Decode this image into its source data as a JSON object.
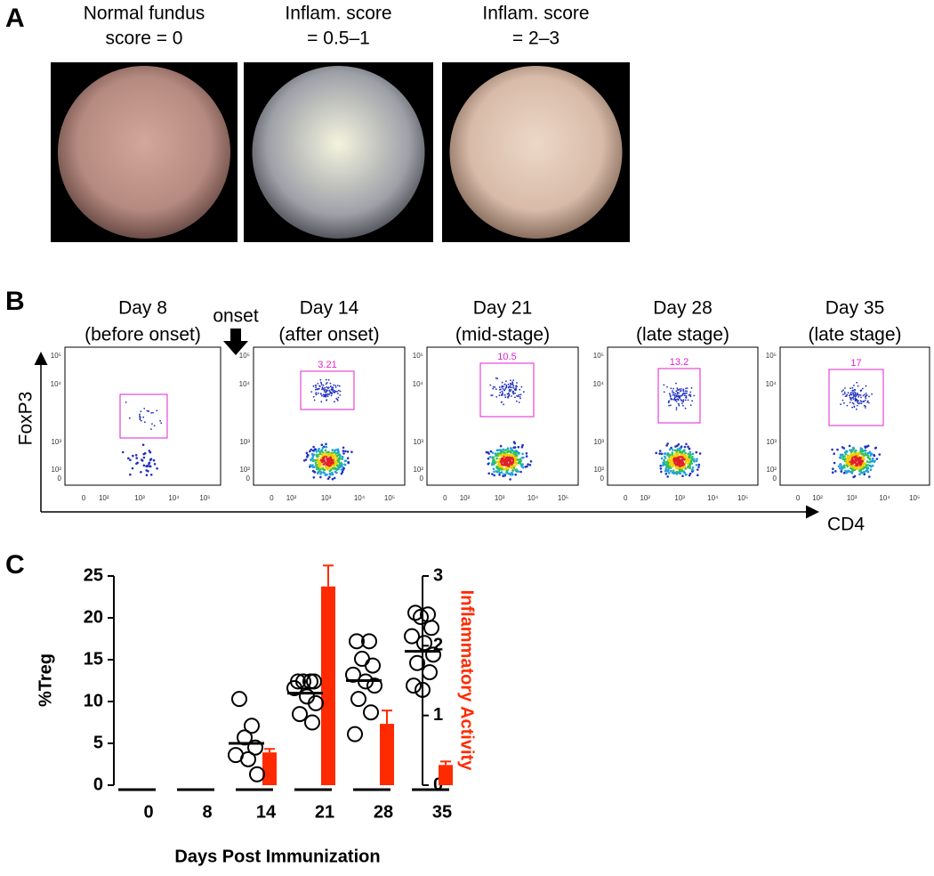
{
  "panel_a": {
    "label": "A",
    "images": [
      {
        "title": [
          "Normal fundus",
          "score = 0"
        ]
      },
      {
        "title": [
          "Inflam. score",
          "= 0.5–1"
        ]
      },
      {
        "title": [
          "Inflam. score",
          "= 2–3"
        ]
      }
    ]
  },
  "panel_b": {
    "label": "B",
    "onset": "onset",
    "x_label": "CD4",
    "y_label": "FoxP3",
    "tick_labels": [
      "0",
      "10²",
      "10³",
      "10⁴",
      "10⁵"
    ],
    "plots": [
      {
        "title": [
          "Day 8",
          "(before onset)"
        ]
      },
      {
        "title": [
          "Day 14",
          "(after onset)"
        ],
        "gate": 3.21
      },
      {
        "title": [
          "Day 21",
          "(mid-stage)"
        ],
        "gate": 10.5
      },
      {
        "title": [
          "Day 28",
          "(late stage)"
        ],
        "gate": 13.2
      },
      {
        "title": [
          "Day 35",
          "(late stage)"
        ],
        "gate": 17
      }
    ]
  },
  "chart_data": {
    "type": "bar",
    "label": "C",
    "x_label": "Days Post Immunization",
    "y_label": "%Treg",
    "y2_label": "Inflammatory Activity",
    "categories": [
      "0",
      "8",
      "14",
      "21",
      "28",
      "35"
    ],
    "ylim": [
      0,
      25
    ],
    "yticks": [
      0,
      5,
      10,
      15,
      20,
      25
    ],
    "y2lim": [
      0,
      3
    ],
    "y2ticks": [
      0,
      1,
      2,
      3
    ],
    "series": [
      {
        "type": "scatter",
        "color": "#000000",
        "values": [
          [],
          [],
          [
            10.3,
            7.1,
            5.7,
            4.5,
            3.6,
            3.1,
            1.3
          ],
          [
            12.4,
            12.4,
            12.4,
            12.4,
            11.6,
            10.6,
            9.8,
            8.5,
            7.5
          ],
          [
            17.2,
            17.2,
            15.1,
            14.3,
            13.2,
            12.4,
            11.9,
            10.3,
            8.7,
            6.1
          ],
          [
            20.6,
            20.4,
            20.1,
            18.8,
            17.8,
            17,
            15.6,
            14.6,
            13.5,
            11.9,
            11.4
          ]
        ],
        "medians": [
          null,
          null,
          5,
          11,
          12.5,
          16
        ]
      },
      {
        "type": "bar",
        "axis": "y2",
        "color": "#ff2a00",
        "values": [
          null,
          null,
          0.47,
          2.85,
          0.88,
          0.29
        ],
        "errors": [
          null,
          null,
          0.05,
          0.3,
          0.19,
          0.05
        ]
      }
    ]
  }
}
